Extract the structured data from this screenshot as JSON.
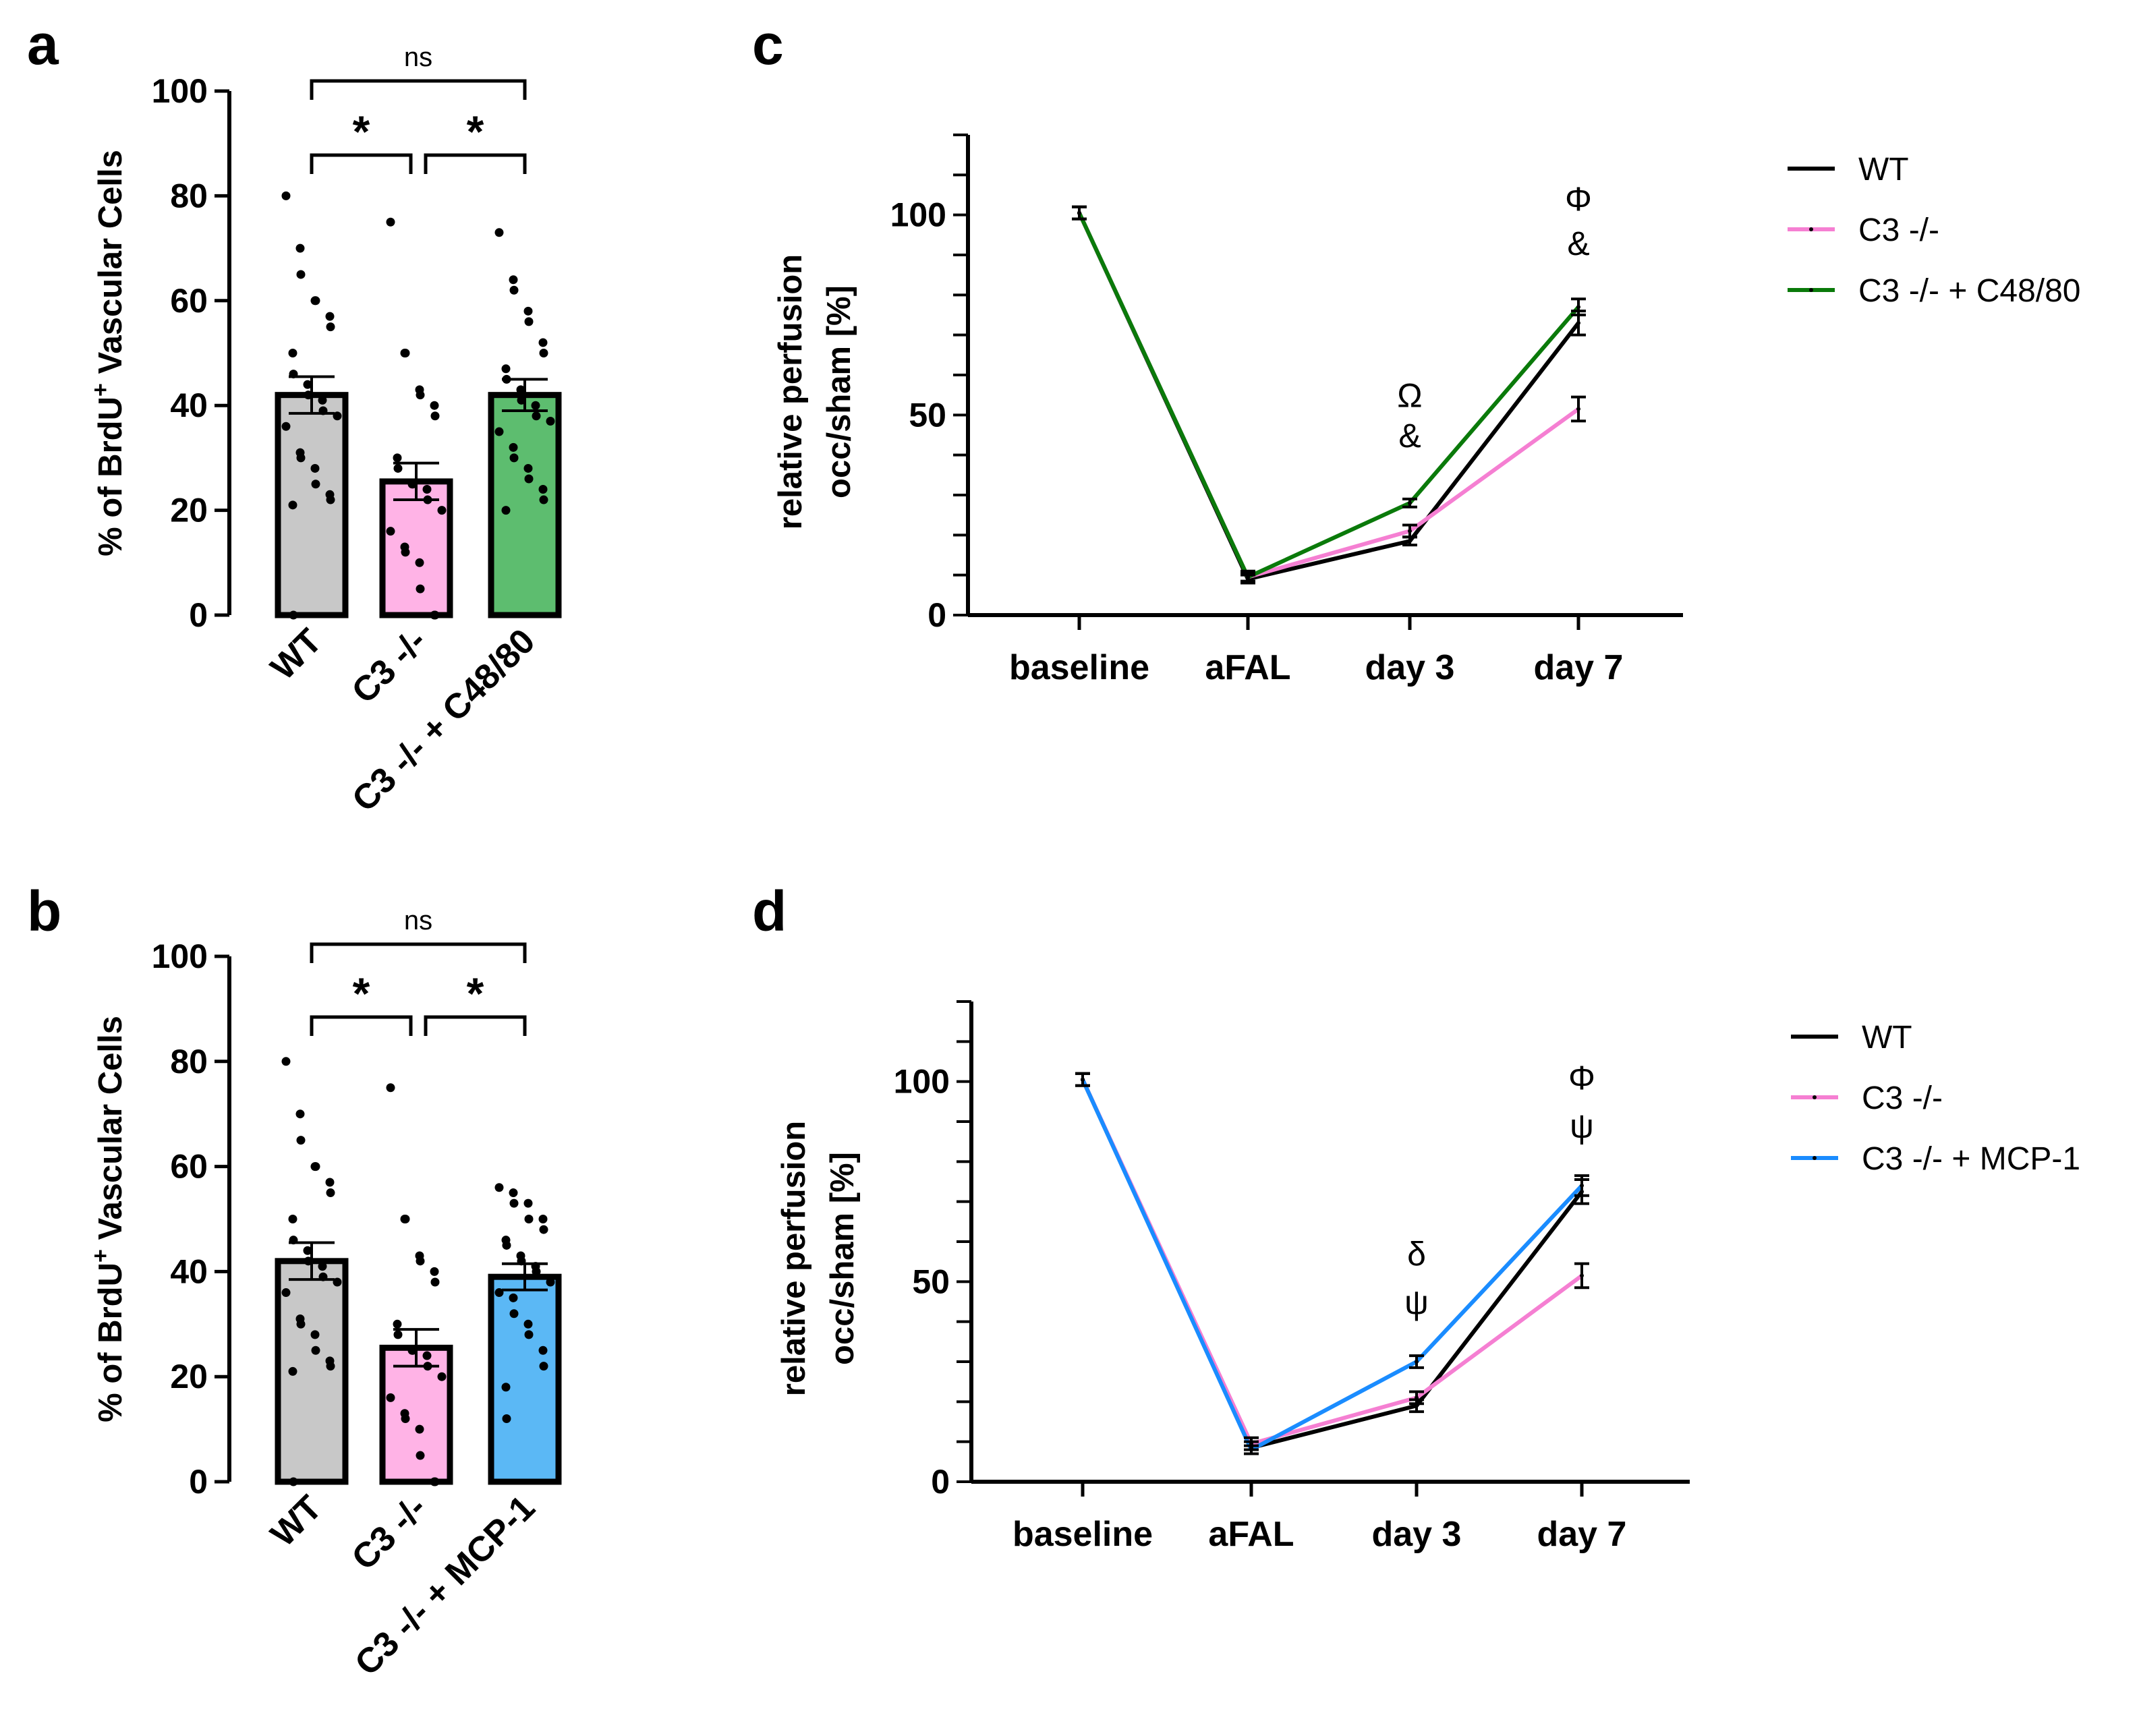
{
  "panels": [
    "a",
    "b",
    "c",
    "d"
  ],
  "chart_data": [
    {
      "panel": "a",
      "type": "bar",
      "ylabel": "% of BrdU+ Vascular Cells",
      "ylabel_main": "% of BrdU",
      "ylabel_sup": "+",
      "ylabel_rest": " Vascular Cells",
      "ylim": [
        0,
        100
      ],
      "yticks": [
        0,
        20,
        40,
        60,
        80,
        100
      ],
      "categories": [
        "WT",
        "C3 -/-",
        "C3 -/- + C48/80"
      ],
      "values": [
        42,
        25.5,
        42
      ],
      "errors": [
        3.5,
        3.5,
        3
      ],
      "colors": [
        "#c8c8c8",
        "#ffb3e6",
        "#5dbd6f"
      ],
      "points": [
        [
          80,
          70,
          65,
          60,
          60,
          57,
          55,
          50,
          46,
          44,
          42,
          41,
          39,
          38,
          36,
          31,
          30,
          28,
          25,
          23,
          22,
          21,
          0
        ],
        [
          75,
          50,
          50,
          43,
          42,
          40,
          38,
          30,
          28,
          25,
          25,
          24,
          22,
          20,
          16,
          13,
          12,
          10,
          5,
          0,
          0
        ],
        [
          73,
          64,
          62,
          58,
          56,
          52,
          50,
          47,
          45,
          43,
          41,
          40,
          38,
          37,
          35,
          32,
          30,
          28,
          26,
          24,
          22,
          20
        ]
      ],
      "comparisons": [
        {
          "from": 0,
          "to": 1,
          "label": "*"
        },
        {
          "from": 1,
          "to": 2,
          "label": "*"
        },
        {
          "from": 0,
          "to": 2,
          "label": "ns"
        }
      ]
    },
    {
      "panel": "b",
      "type": "bar",
      "ylabel": "% of BrdU+ Vascular Cells",
      "ylabel_main": "% of BrdU",
      "ylabel_sup": "+",
      "ylabel_rest": " Vascular Cells",
      "ylim": [
        0,
        100
      ],
      "yticks": [
        0,
        20,
        40,
        60,
        80,
        100
      ],
      "categories": [
        "WT",
        "C3 -/-",
        "C3 -/- + MCP-1"
      ],
      "values": [
        42,
        25.5,
        39
      ],
      "errors": [
        3.5,
        3.5,
        2.5
      ],
      "colors": [
        "#c8c8c8",
        "#ffb3e6",
        "#5bb8f5"
      ],
      "points": [
        [
          80,
          70,
          65,
          60,
          60,
          57,
          55,
          50,
          46,
          44,
          42,
          41,
          39,
          38,
          36,
          31,
          30,
          28,
          25,
          23,
          22,
          21,
          0
        ],
        [
          75,
          50,
          50,
          43,
          42,
          40,
          38,
          30,
          28,
          25,
          25,
          24,
          22,
          20,
          16,
          13,
          12,
          10,
          5,
          0,
          0
        ],
        [
          56,
          55,
          53,
          53,
          50,
          50,
          48,
          46,
          45,
          43,
          42,
          41,
          40,
          38,
          36,
          35,
          32,
          30,
          28,
          25,
          22,
          18,
          12
        ]
      ],
      "comparisons": [
        {
          "from": 0,
          "to": 1,
          "label": "*"
        },
        {
          "from": 1,
          "to": 2,
          "label": "*"
        },
        {
          "from": 0,
          "to": 2,
          "label": "ns"
        }
      ]
    },
    {
      "panel": "c",
      "type": "line",
      "ylabel_line1": "relative perfusion",
      "ylabel_line2": "occ/sham [%]",
      "ylim": [
        0,
        120
      ],
      "yticks": [
        0,
        50,
        100
      ],
      "categories": [
        "baseline",
        "aFAL",
        "day 3",
        "day 7"
      ],
      "series": [
        {
          "name": "WT",
          "color": "#000000",
          "values": [
            100.5,
            9,
            18.5,
            73
          ],
          "errors": [
            1.5,
            1,
            1,
            3
          ]
        },
        {
          "name": "C3 -/-",
          "color": "#f57fd2",
          "values": [
            100.5,
            9.5,
            21,
            51.5
          ],
          "errors": [
            1.5,
            1.5,
            1.5,
            3
          ]
        },
        {
          "name": "C3 -/- + C48/80",
          "color": "#0a7a0a",
          "values": [
            100.5,
            9.5,
            28,
            77
          ],
          "errors": [
            1.5,
            1,
            1,
            2
          ]
        }
      ],
      "annotations": [
        {
          "category": 2,
          "value": 52,
          "text": "Ω"
        },
        {
          "category": 2,
          "value": 42,
          "text": "&"
        },
        {
          "category": 3,
          "value": 101,
          "text": "Φ"
        },
        {
          "category": 3,
          "value": 90,
          "text": "&"
        }
      ]
    },
    {
      "panel": "d",
      "type": "line",
      "ylabel_line1": "relative perfusion",
      "ylabel_line2": "occ/sham [%]",
      "ylim": [
        0,
        120
      ],
      "yticks": [
        0,
        50,
        100
      ],
      "categories": [
        "baseline",
        "aFAL",
        "day 3",
        "day 7"
      ],
      "series": [
        {
          "name": "WT",
          "color": "#000000",
          "values": [
            100.5,
            8.5,
            19,
            72.5
          ],
          "errors": [
            1.5,
            1.5,
            1.5,
            3
          ]
        },
        {
          "name": "C3 -/-",
          "color": "#f57fd2",
          "values": [
            100.5,
            9.5,
            21,
            51.5
          ],
          "errors": [
            1.5,
            1.5,
            1.5,
            3
          ]
        },
        {
          "name": "C3 -/- + MCP-1",
          "color": "#1a8cff",
          "values": [
            100.5,
            8,
            30,
            74
          ],
          "errors": [
            1.5,
            1,
            1.5,
            2.5
          ]
        }
      ],
      "annotations": [
        {
          "category": 2,
          "value": 54,
          "text": "δ"
        },
        {
          "category": 2,
          "value": 42,
          "text": "ψ"
        },
        {
          "category": 3,
          "value": 98,
          "text": "Φ"
        },
        {
          "category": 3,
          "value": 86,
          "text": "ψ"
        }
      ]
    }
  ]
}
